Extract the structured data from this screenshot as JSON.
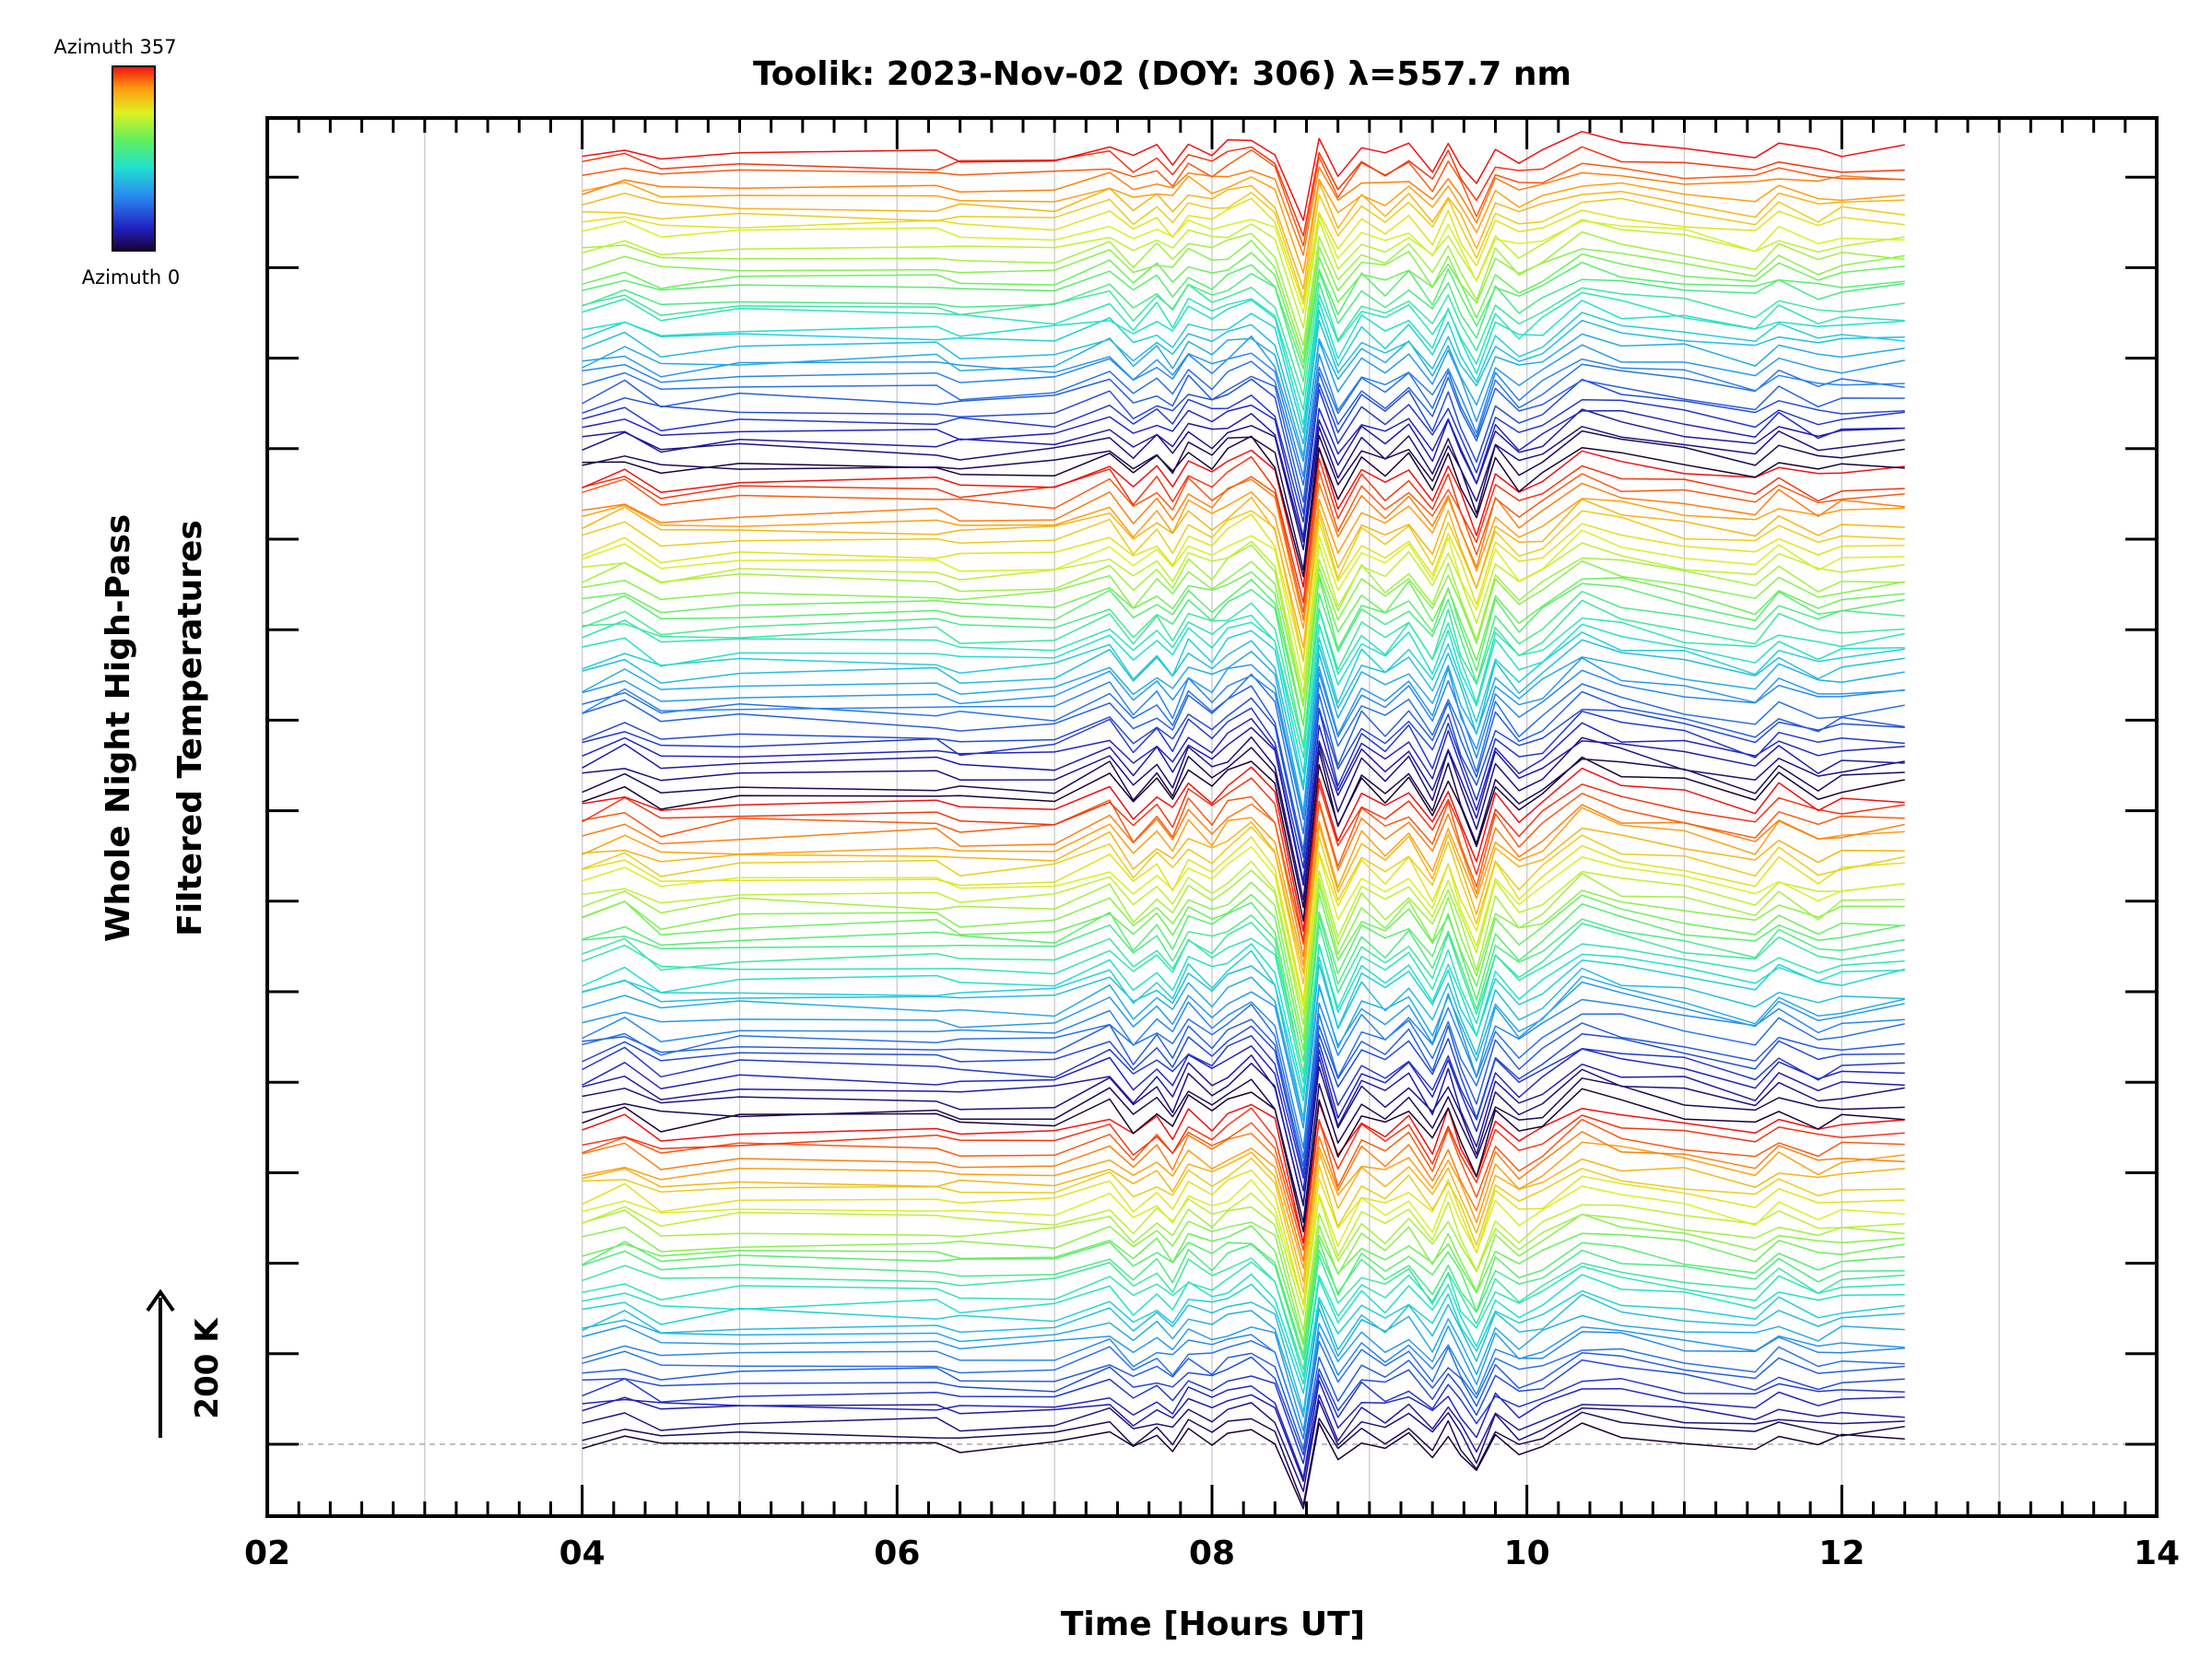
{
  "chart_data": {
    "type": "line",
    "title": "Toolik: 2023-Nov-02 (DOY: 306) λ=557.7 nm",
    "xlabel": "Time [Hours UT]",
    "ylabel_line1": "Whole Night High-Pass",
    "ylabel_line2": "Filtered Temperatures",
    "xlim": [
      2,
      14
    ],
    "x_ticks": [
      "02",
      "04",
      "06",
      "08",
      "10",
      "12",
      "14"
    ],
    "scale_marker": "200 K",
    "colorbar": {
      "top_label": "Azimuth 357",
      "bottom_label": "Azimuth 0",
      "colormap": "rainbow"
    },
    "grid": true,
    "trace_count": 128,
    "azimuth_range": [
      0,
      357
    ],
    "trace_start_hour": 4.0,
    "trace_end_hour": 12.4,
    "sample_times": [
      4.0,
      4.27,
      4.5,
      5.0,
      6.25,
      6.4,
      7.0,
      7.35,
      7.5,
      7.65,
      7.75,
      7.85,
      8.0,
      8.1,
      8.25,
      8.4,
      8.58,
      8.68,
      8.8,
      8.95,
      9.1,
      9.25,
      9.4,
      9.5,
      9.58,
      9.68,
      9.8,
      9.95,
      10.1,
      10.35,
      10.6,
      11.0,
      11.45,
      11.6,
      11.85,
      12.0,
      12.4
    ],
    "common_signal_K": [
      0,
      20,
      -10,
      0,
      0,
      -8,
      -5,
      25,
      -15,
      15,
      -12,
      30,
      8,
      25,
      45,
      10,
      -170,
      40,
      -50,
      15,
      -10,
      20,
      -30,
      25,
      -25,
      -80,
      10,
      -25,
      -5,
      40,
      25,
      10,
      -10,
      20,
      -5,
      5,
      10
    ],
    "colors": {
      "grid": "#d0d0d0",
      "axis": "#000000",
      "baseline": "#aaaaaa"
    }
  }
}
